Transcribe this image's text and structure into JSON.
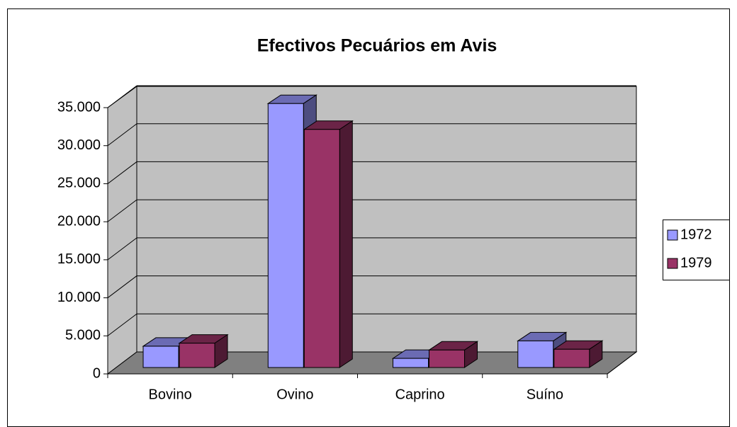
{
  "chart_data": {
    "type": "bar3d",
    "title": "Efectivos Pecuários em Avis",
    "categories": [
      "Bovino",
      "Ovino",
      "Caprino",
      "Suíno"
    ],
    "series": [
      {
        "name": "1972",
        "color": "#9999ff",
        "values": [
          2800,
          34700,
          1200,
          3500
        ]
      },
      {
        "name": "1979",
        "color": "#993366",
        "values": [
          3200,
          31300,
          2300,
          2400
        ]
      }
    ],
    "ylim": [
      0,
      35000
    ],
    "yticks": [
      0,
      {
        "value": 5000,
        "label": "5.000"
      },
      {
        "value": 10000,
        "label": "10.000"
      },
      {
        "value": 15000,
        "label": "15.000"
      },
      {
        "value": 20000,
        "label": "20.000"
      },
      {
        "value": 25000,
        "label": "25.000"
      },
      {
        "value": 30000,
        "label": "30.000"
      },
      {
        "value": 35000,
        "label": "35.000"
      }
    ],
    "grid": true,
    "legend": "right"
  }
}
